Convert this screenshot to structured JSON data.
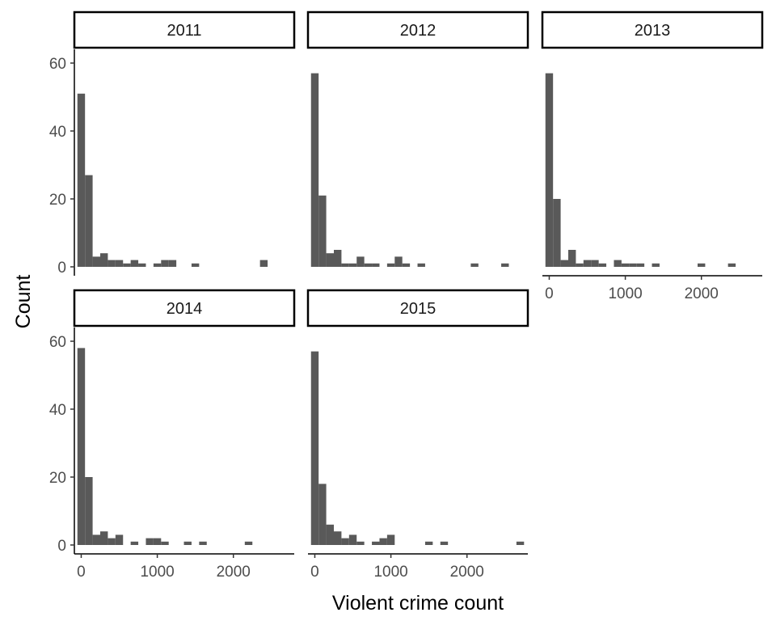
{
  "chart_data": {
    "type": "bar",
    "subtype": "faceted-histogram",
    "title": "",
    "xlabel": "Violent crime count",
    "ylabel": "Count",
    "xlim": [
      -90,
      2800
    ],
    "ylim": [
      0,
      60
    ],
    "x_ticks": [
      0,
      1000,
      2000
    ],
    "y_ticks": [
      0,
      20,
      40,
      60
    ],
    "bin_width": 100,
    "bar_color": "#595959",
    "grid": false,
    "legend": "none",
    "facet_layout": {
      "ncol": 3,
      "nrow": 2
    },
    "facets": [
      {
        "label": "2011",
        "bins": [
          {
            "x": 0,
            "count": 51
          },
          {
            "x": 100,
            "count": 27
          },
          {
            "x": 200,
            "count": 3
          },
          {
            "x": 300,
            "count": 4
          },
          {
            "x": 400,
            "count": 2
          },
          {
            "x": 500,
            "count": 2
          },
          {
            "x": 600,
            "count": 1
          },
          {
            "x": 700,
            "count": 2
          },
          {
            "x": 800,
            "count": 1
          },
          {
            "x": 1000,
            "count": 1
          },
          {
            "x": 1100,
            "count": 2
          },
          {
            "x": 1200,
            "count": 2
          },
          {
            "x": 1500,
            "count": 1
          },
          {
            "x": 2400,
            "count": 2
          }
        ]
      },
      {
        "label": "2012",
        "bins": [
          {
            "x": 0,
            "count": 57
          },
          {
            "x": 100,
            "count": 21
          },
          {
            "x": 200,
            "count": 4
          },
          {
            "x": 300,
            "count": 5
          },
          {
            "x": 400,
            "count": 1
          },
          {
            "x": 500,
            "count": 1
          },
          {
            "x": 600,
            "count": 3
          },
          {
            "x": 700,
            "count": 1
          },
          {
            "x": 800,
            "count": 1
          },
          {
            "x": 1000,
            "count": 1
          },
          {
            "x": 1100,
            "count": 3
          },
          {
            "x": 1200,
            "count": 1
          },
          {
            "x": 1400,
            "count": 1
          },
          {
            "x": 2100,
            "count": 1
          },
          {
            "x": 2500,
            "count": 1
          }
        ]
      },
      {
        "label": "2013",
        "bins": [
          {
            "x": 0,
            "count": 57
          },
          {
            "x": 100,
            "count": 20
          },
          {
            "x": 200,
            "count": 2
          },
          {
            "x": 300,
            "count": 5
          },
          {
            "x": 400,
            "count": 1
          },
          {
            "x": 500,
            "count": 2
          },
          {
            "x": 600,
            "count": 2
          },
          {
            "x": 700,
            "count": 1
          },
          {
            "x": 900,
            "count": 2
          },
          {
            "x": 1000,
            "count": 1
          },
          {
            "x": 1100,
            "count": 1
          },
          {
            "x": 1200,
            "count": 1
          },
          {
            "x": 1400,
            "count": 1
          },
          {
            "x": 2000,
            "count": 1
          },
          {
            "x": 2400,
            "count": 1
          }
        ]
      },
      {
        "label": "2014",
        "bins": [
          {
            "x": 0,
            "count": 58
          },
          {
            "x": 100,
            "count": 20
          },
          {
            "x": 200,
            "count": 3
          },
          {
            "x": 300,
            "count": 4
          },
          {
            "x": 400,
            "count": 2
          },
          {
            "x": 500,
            "count": 3
          },
          {
            "x": 700,
            "count": 1
          },
          {
            "x": 900,
            "count": 2
          },
          {
            "x": 1000,
            "count": 2
          },
          {
            "x": 1100,
            "count": 1
          },
          {
            "x": 1400,
            "count": 1
          },
          {
            "x": 1600,
            "count": 1
          },
          {
            "x": 2200,
            "count": 1
          }
        ]
      },
      {
        "label": "2015",
        "bins": [
          {
            "x": 0,
            "count": 57
          },
          {
            "x": 100,
            "count": 18
          },
          {
            "x": 200,
            "count": 6
          },
          {
            "x": 300,
            "count": 4
          },
          {
            "x": 400,
            "count": 2
          },
          {
            "x": 500,
            "count": 3
          },
          {
            "x": 600,
            "count": 1
          },
          {
            "x": 800,
            "count": 1
          },
          {
            "x": 900,
            "count": 2
          },
          {
            "x": 1000,
            "count": 3
          },
          {
            "x": 1500,
            "count": 1
          },
          {
            "x": 1700,
            "count": 1
          },
          {
            "x": 2700,
            "count": 1
          }
        ]
      }
    ]
  }
}
